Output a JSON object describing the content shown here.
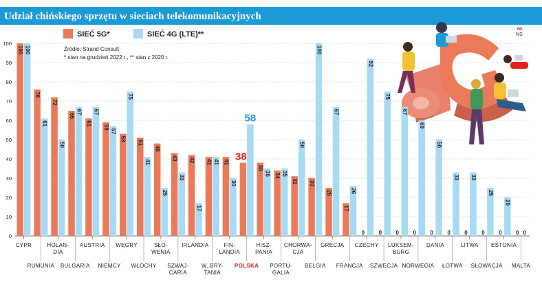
{
  "title": "Udział chińskiego sprzętu w sieciach telekomunikacyjnych",
  "legend": {
    "series_5g": "SIEĆ 5G*",
    "series_4g": "SIEĆ 4G (LTE)**"
  },
  "source": {
    "line1": "Źródło: Strand Consult",
    "line2": "* stan na grudzień 2022 r., ** stan z 2020 r."
  },
  "logo": {
    "rings": "∞",
    "text": "NS"
  },
  "colors": {
    "title_bar": "#1c9ad6",
    "series_5g": "#ea7a5a",
    "series_4g": "#a8daf3",
    "highlight": "#e2231a",
    "highlight_4g": "#1c9ad6",
    "grid": "#b8b8b8"
  },
  "illustration": "5g-people-illustration",
  "chart_data": {
    "type": "bar",
    "title": "Udział chińskiego sprzętu w sieciach telekomunikacyjnych",
    "ylim": [
      0,
      100
    ],
    "yticks": [
      0,
      10,
      20,
      30,
      40,
      50,
      60,
      70,
      80,
      90,
      100
    ],
    "grid": true,
    "legend_position": "top-left",
    "highlight_category": "Polska",
    "categories": [
      "Cypr",
      "Rumunia",
      "Holandia",
      "Bułgaria",
      "Austria",
      "Niemcy",
      "Węgry",
      "Włochy",
      "Słowenia",
      "Szwajcaria",
      "Irlandia",
      "W. Brytania",
      "Finlandia",
      "Polska",
      "Hiszpania",
      "Portugalia",
      "Chorwacja",
      "Belgia",
      "Grecja",
      "Francja",
      "Czechy",
      "Szwecja",
      "Luksemburg",
      "Norwegia",
      "Dania",
      "Łotwa",
      "Litwa",
      "Słowacja",
      "Estonia",
      "Malta"
    ],
    "category_labels": [
      {
        "lines": [
          "Cypr"
        ],
        "row": "upper"
      },
      {
        "lines": [
          "Rumunia"
        ],
        "row": "lower"
      },
      {
        "lines": [
          "Holan-",
          "dia"
        ],
        "row": "upper"
      },
      {
        "lines": [
          "Bułgaria"
        ],
        "row": "lower"
      },
      {
        "lines": [
          "Austria"
        ],
        "row": "upper"
      },
      {
        "lines": [
          "Niemcy"
        ],
        "row": "lower"
      },
      {
        "lines": [
          "Węgry"
        ],
        "row": "upper"
      },
      {
        "lines": [
          "Włochy"
        ],
        "row": "lower"
      },
      {
        "lines": [
          "Sło-",
          "wenia"
        ],
        "row": "upper"
      },
      {
        "lines": [
          "Szwaj-",
          "caria"
        ],
        "row": "lower"
      },
      {
        "lines": [
          "Irlandia"
        ],
        "row": "upper"
      },
      {
        "lines": [
          "W. Bry-",
          "tania"
        ],
        "row": "lower"
      },
      {
        "lines": [
          "Fin-",
          "landia"
        ],
        "row": "upper"
      },
      {
        "lines": [
          "Polska"
        ],
        "row": "lower"
      },
      {
        "lines": [
          "Hisz-",
          "pania"
        ],
        "row": "upper"
      },
      {
        "lines": [
          "Portu-",
          "galia"
        ],
        "row": "lower"
      },
      {
        "lines": [
          "Chorwa-",
          "cja"
        ],
        "row": "upper"
      },
      {
        "lines": [
          "Belgia"
        ],
        "row": "lower"
      },
      {
        "lines": [
          "Grecja"
        ],
        "row": "upper"
      },
      {
        "lines": [
          "Francja"
        ],
        "row": "lower"
      },
      {
        "lines": [
          "Czechy"
        ],
        "row": "upper"
      },
      {
        "lines": [
          "Szwecja"
        ],
        "row": "lower"
      },
      {
        "lines": [
          "Luksem-",
          "burg"
        ],
        "row": "upper"
      },
      {
        "lines": [
          "Norwegia"
        ],
        "row": "lower"
      },
      {
        "lines": [
          "Dania"
        ],
        "row": "upper"
      },
      {
        "lines": [
          "Łotwa"
        ],
        "row": "lower"
      },
      {
        "lines": [
          "Litwa"
        ],
        "row": "upper"
      },
      {
        "lines": [
          "Słowacja"
        ],
        "row": "lower"
      },
      {
        "lines": [
          "Estonia"
        ],
        "row": "upper"
      },
      {
        "lines": [
          "Malta"
        ],
        "row": "lower"
      }
    ],
    "series": [
      {
        "name": "SIEĆ 5G*",
        "values": [
          100,
          76,
          72,
          65,
          61,
          59,
          53,
          51,
          48,
          43,
          42,
          41,
          41,
          38,
          38,
          34,
          31,
          30,
          25,
          17,
          0,
          0,
          0,
          0,
          0,
          0,
          0,
          0,
          0,
          0
        ]
      },
      {
        "name": "SIEĆ 4G (LTE)**",
        "values": [
          100,
          61,
          50,
          67,
          67,
          57,
          75,
          41,
          25,
          33,
          17,
          41,
          30,
          58,
          35,
          35,
          50,
          100,
          67,
          26,
          92,
          75,
          67,
          60,
          50,
          33,
          33,
          25,
          20,
          0
        ]
      }
    ]
  }
}
